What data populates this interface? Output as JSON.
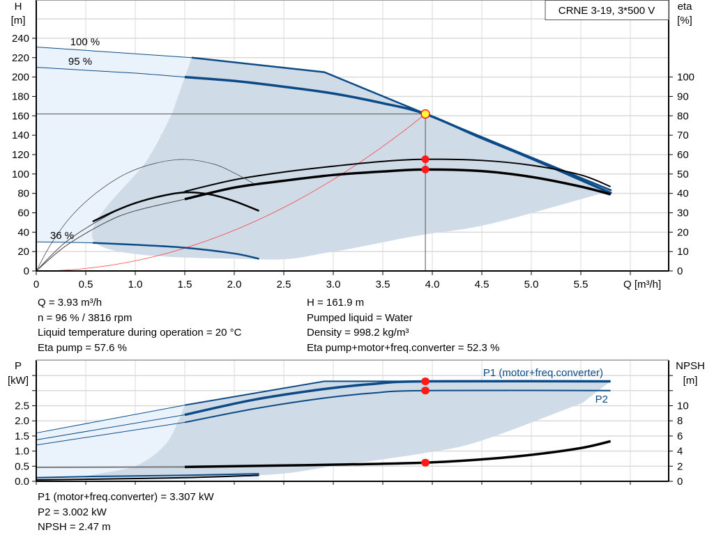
{
  "colors": {
    "blue": "#0b4a86",
    "gray_region": "#cfdbe6",
    "light_region": "#eaf3fc",
    "grid": "#d9d9d9",
    "marker": "#ff1a1a",
    "duty_marker": "#ffff33",
    "system_curve": "#ff4040"
  },
  "chart_data": [
    {
      "type": "line",
      "title": "CRNE 3-19, 3*500 V",
      "xlabel": "Q [m³/h]",
      "ylabel": "H\n[m]",
      "y2label": "eta\n[%]",
      "ylabel_lines": [
        "H",
        "[m]"
      ],
      "y2label_lines": [
        "eta",
        "[%]"
      ],
      "xlim": [
        0,
        6.4
      ],
      "ylim": [
        0,
        280
      ],
      "y2lim": [
        0,
        140
      ],
      "grid": true,
      "x_ticks": [
        "0",
        "0.5",
        "1.0",
        "1.5",
        "2.0",
        "2.5",
        "3.0",
        "3.5",
        "4.0",
        "4.5",
        "5.0",
        "5.5"
      ],
      "y_ticks": [
        "0",
        "20",
        "40",
        "60",
        "80",
        "100",
        "120",
        "140",
        "160",
        "180",
        "200",
        "220",
        "240"
      ],
      "y2_ticks": [
        "0",
        "10",
        "20",
        "30",
        "40",
        "50",
        "60",
        "70",
        "80",
        "90",
        "100"
      ],
      "speed_labels": [
        "100 %",
        "95 %",
        "36 %"
      ],
      "series": [
        {
          "name": "100 %",
          "axis": "H",
          "x": [
            0,
            1.57,
            2.91,
            5.81
          ],
          "y": [
            231,
            220,
            205,
            83
          ]
        },
        {
          "name": "95 %",
          "axis": "H",
          "x": [
            0,
            0.5,
            1.0,
            1.5,
            2.0,
            2.5,
            3.0,
            3.5,
            3.93,
            4.5,
            5.0,
            5.81
          ],
          "y": [
            210,
            207,
            204,
            200,
            196,
            190,
            183,
            173,
            161.9,
            137,
            116,
            80
          ]
        },
        {
          "name": "36 %",
          "axis": "H",
          "x": [
            0,
            0.57,
            1.0,
            1.5,
            2.0,
            2.25
          ],
          "y": [
            30,
            29,
            27,
            24,
            18,
            12.5
          ]
        },
        {
          "axis": "eta",
          "x": [
            0,
            0.3,
            0.7,
            1.0,
            1.5,
            2.0,
            2.5,
            3.0,
            3.5,
            3.93,
            4.5,
            5.0,
            5.5,
            5.8
          ],
          "y": [
            0,
            15,
            28,
            35,
            41,
            47,
            51,
            54,
            56.5,
            57.6,
            57,
            54.5,
            49.5,
            43.5
          ]
        },
        {
          "axis": "eta",
          "x": [
            0,
            0.3,
            0.7,
            1.0,
            1.5,
            2.0,
            2.5,
            3.0,
            3.5,
            3.93,
            4.5,
            5.0,
            5.5,
            5.8
          ],
          "y": [
            0,
            13,
            25,
            31,
            37,
            43,
            46.5,
            49.5,
            51.3,
            52.3,
            51.5,
            48.5,
            43.5,
            39.5
          ]
        },
        {
          "axis": "eta",
          "x": [
            0,
            0.15,
            0.35,
            0.6,
            0.9,
            1.2,
            1.5,
            1.8,
            2.0,
            2.2
          ],
          "y": [
            0,
            14,
            28,
            40,
            50,
            55.5,
            57.5,
            55,
            50.5,
            45
          ]
        },
        {
          "axis": "eta",
          "x": [
            0.57,
            0.8,
            1.0,
            1.25,
            1.5,
            1.75,
            2.0,
            2.25
          ],
          "y": [
            25.5,
            31,
            35,
            38.5,
            40.5,
            39.5,
            36,
            31
          ]
        },
        {
          "name": "system",
          "axis": "H",
          "type": "quadratic",
          "x_end": 3.93,
          "y_end": 161.9
        }
      ],
      "envelope_upper": {
        "x": [
          0,
          1.57,
          2.91,
          5.81
        ],
        "y": [
          231,
          220,
          205,
          83
        ]
      },
      "region_light": {
        "x": [
          0,
          0,
          0.6,
          1.13,
          1.37,
          1.57
        ],
        "y": [
          231,
          30,
          29,
          116,
          162,
          220
        ]
      },
      "region_gray": {
        "x": [
          1.57,
          2.91,
          5.81,
          5.71,
          4.56,
          3.86,
          3.0,
          2.25,
          0.6,
          1.13,
          1.37
        ],
        "y": [
          220,
          205,
          83,
          80,
          48,
          36.6,
          20,
          12,
          29,
          116,
          162
        ]
      },
      "duty_point": {
        "Q": 3.93,
        "H": 161.9,
        "eta_pump": 57.6,
        "eta_total": 52.3
      }
    },
    {
      "type": "line",
      "ylabel_lines": [
        "P",
        "[kW]"
      ],
      "y2label_lines": [
        "NPSH",
        "[m]"
      ],
      "xlim": [
        0,
        6.4
      ],
      "ylim": [
        0,
        4.0
      ],
      "y2lim": [
        0,
        16
      ],
      "grid": true,
      "y_ticks": [
        "0.0",
        "0.5",
        "1.0",
        "1.5",
        "2.0",
        "2.5"
      ],
      "y2_ticks": [
        "0",
        "2",
        "4",
        "6",
        "8",
        "10"
      ],
      "series_labels": [
        "P1 (motor+freq.converter)",
        "P2"
      ],
      "series": [
        {
          "name": "P1 (motor+freq.converter)",
          "axis": "P",
          "x": [
            0,
            1.5,
            2.2,
            2.9,
            3.4,
            3.93,
            5.8
          ],
          "y": [
            1.37,
            2.2,
            2.7,
            3.05,
            3.22,
            3.307,
            3.307
          ]
        },
        {
          "name": "P2",
          "axis": "P",
          "x": [
            0,
            1.5,
            2.2,
            2.9,
            3.4,
            3.93,
            5.8
          ],
          "y": [
            1.2,
            1.95,
            2.4,
            2.75,
            2.92,
            3.002,
            3.002
          ]
        },
        {
          "axis": "P",
          "x": [
            0,
            1.5,
            2.91,
            5.8
          ],
          "y": [
            1.6,
            2.52,
            3.31,
            3.31
          ]
        },
        {
          "axis": "P",
          "x": [
            0,
            0.57,
            1.5,
            2.25
          ],
          "y": [
            0.12,
            0.16,
            0.2,
            0.25
          ]
        },
        {
          "axis": "P",
          "x": [
            0,
            0.57,
            1.5,
            2.25
          ],
          "y": [
            0.05,
            0.07,
            0.12,
            0.2
          ]
        },
        {
          "name": "NPSH",
          "axis": "NPSH",
          "x": [
            0,
            1.5,
            2.5,
            3.0,
            3.93,
            4.5,
            5.0,
            5.5,
            5.8
          ],
          "y": [
            1.85,
            1.9,
            2.1,
            2.2,
            2.47,
            2.9,
            3.5,
            4.4,
            5.3
          ]
        }
      ],
      "region_light": {
        "x": [
          0,
          1.5,
          2.25,
          2.25,
          0
        ],
        "y": [
          1.6,
          2.52,
          0.25,
          0.05,
          0.05
        ]
      },
      "region_gray": {
        "x": [
          1.5,
          2.91,
          5.8,
          5.52,
          4.5,
          3.95,
          3.0,
          2.25,
          0.52,
          1.0,
          1.3,
          1.45
        ],
        "y": [
          2.52,
          3.31,
          3.31,
          2.6,
          1.35,
          0.95,
          0.5,
          0.2,
          0.1,
          0.5,
          1.2,
          2.1
        ]
      },
      "duty_point": {
        "P1": 3.307,
        "P2": 3.002,
        "NPSH": 2.47
      }
    }
  ],
  "info_top": {
    "q": "Q = 3.93 m³/h",
    "n": "n = 96 % / 3816 rpm",
    "temp": "Liquid temperature during operation = 20 °C",
    "eta_pump": "Eta pump = 57.6 %",
    "h": "H = 161.9 m",
    "liquid": "Pumped liquid = Water",
    "density": "Density = 998.2 kg/m³",
    "eta_total": "Eta pump+motor+freq.converter = 52.3 %"
  },
  "info_bottom": {
    "p1": "P1 (motor+freq.converter) = 3.307 kW",
    "p2": "P2 = 3.002 kW",
    "npsh": "NPSH = 2.47 m"
  }
}
